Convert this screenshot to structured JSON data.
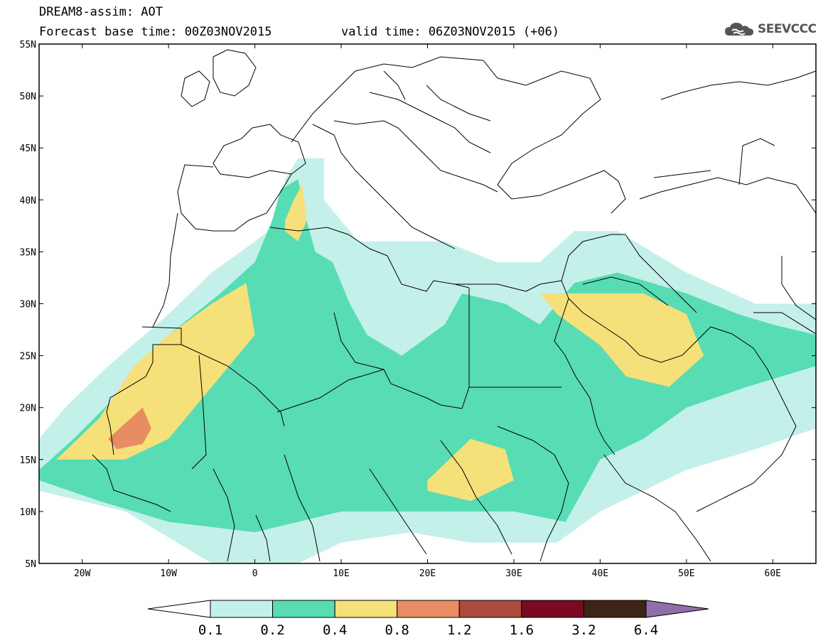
{
  "header": {
    "line1": "DREAM8-assim: AOT",
    "line2_left": "Forecast base time: 00Z03NOV2015",
    "line2_right": "valid time: 06Z03NOV2015 (+06)"
  },
  "logo": {
    "text": "SEEVCCC",
    "icon": "cloud-icon",
    "color": "#555555"
  },
  "map": {
    "projection": "lat-lon",
    "lon_range": [
      -25,
      65
    ],
    "lat_range": [
      5,
      55
    ],
    "lon_ticks": [
      {
        "value": -20,
        "label": "20W"
      },
      {
        "value": -10,
        "label": "10W"
      },
      {
        "value": 0,
        "label": "0"
      },
      {
        "value": 10,
        "label": "10E"
      },
      {
        "value": 20,
        "label": "20E"
      },
      {
        "value": 30,
        "label": "30E"
      },
      {
        "value": 40,
        "label": "40E"
      },
      {
        "value": 50,
        "label": "50E"
      },
      {
        "value": 60,
        "label": "60E"
      }
    ],
    "lat_ticks": [
      {
        "value": 55,
        "label": "55N"
      },
      {
        "value": 50,
        "label": "50N"
      },
      {
        "value": 45,
        "label": "45N"
      },
      {
        "value": 40,
        "label": "40N"
      },
      {
        "value": 35,
        "label": "35N"
      },
      {
        "value": 30,
        "label": "30N"
      },
      {
        "value": 25,
        "label": "25N"
      },
      {
        "value": 20,
        "label": "20N"
      },
      {
        "value": 15,
        "label": "15N"
      },
      {
        "value": 10,
        "label": "10N"
      },
      {
        "value": 5,
        "label": "5N"
      }
    ]
  },
  "colorbar": {
    "labels": [
      "0.1",
      "0.2",
      "0.4",
      "0.8",
      "1.2",
      "1.6",
      "3.2",
      "6.4"
    ],
    "under_color": "#ffffff",
    "over_color": "#8e6fa9",
    "bins": [
      "#c4f0ea",
      "#58dcb4",
      "#f5e07a",
      "#e88c64",
      "#a94c3c",
      "#7a0a24",
      "#3e2414"
    ]
  },
  "chart_data": {
    "type": "heatmap",
    "variable": "AOT",
    "x_range_deg_lon": [
      -25,
      65
    ],
    "y_range_deg_lat": [
      5,
      55
    ],
    "levels": [
      0.1,
      0.2,
      0.4,
      0.8,
      1.2,
      1.6,
      3.2,
      6.4
    ],
    "colors": [
      "#c4f0ea",
      "#58dcb4",
      "#f5e07a",
      "#e88c64",
      "#a94c3c",
      "#7a0a24",
      "#3e2414",
      "#8e6fa9"
    ],
    "regions": [
      {
        "level": 0.1,
        "polygon": [
          [
            -25,
            17
          ],
          [
            -22,
            20
          ],
          [
            -17,
            24
          ],
          [
            -10,
            29
          ],
          [
            -5,
            33
          ],
          [
            0,
            36
          ],
          [
            3,
            38
          ],
          [
            3.5,
            42
          ],
          [
            5,
            44
          ],
          [
            8,
            44
          ],
          [
            8,
            40
          ],
          [
            12,
            36
          ],
          [
            18,
            36
          ],
          [
            22,
            36
          ],
          [
            28,
            34
          ],
          [
            33,
            34
          ],
          [
            37,
            37
          ],
          [
            42,
            37
          ],
          [
            50,
            33
          ],
          [
            58,
            30
          ],
          [
            65,
            30
          ],
          [
            65,
            18
          ],
          [
            58,
            16
          ],
          [
            50,
            14
          ],
          [
            45,
            12
          ],
          [
            40,
            10
          ],
          [
            35,
            7
          ],
          [
            25,
            7
          ],
          [
            18,
            8
          ],
          [
            10,
            7
          ],
          [
            5,
            5
          ],
          [
            -5,
            5
          ],
          [
            -15,
            10
          ],
          [
            -25,
            12
          ]
        ]
      },
      {
        "level": 0.2,
        "polygon": [
          [
            -25,
            14
          ],
          [
            -21,
            17
          ],
          [
            -15,
            22
          ],
          [
            -10,
            27
          ],
          [
            -4,
            31
          ],
          [
            0,
            34
          ],
          [
            2,
            38
          ],
          [
            3,
            41
          ],
          [
            5,
            42
          ],
          [
            6,
            38
          ],
          [
            7,
            35
          ],
          [
            9,
            34
          ],
          [
            11,
            30
          ],
          [
            13,
            27
          ],
          [
            17,
            25
          ],
          [
            22,
            28
          ],
          [
            24,
            31
          ],
          [
            29,
            30
          ],
          [
            33,
            28
          ],
          [
            37,
            32
          ],
          [
            42,
            33
          ],
          [
            50,
            31
          ],
          [
            56,
            29
          ],
          [
            60,
            28
          ],
          [
            65,
            27
          ],
          [
            65,
            24
          ],
          [
            57,
            22
          ],
          [
            50,
            20
          ],
          [
            45,
            17
          ],
          [
            40,
            15
          ],
          [
            38,
            12
          ],
          [
            36,
            9
          ],
          [
            30,
            10
          ],
          [
            20,
            10
          ],
          [
            10,
            10
          ],
          [
            0,
            8
          ],
          [
            -10,
            9
          ],
          [
            -18,
            11
          ],
          [
            -25,
            13
          ]
        ]
      },
      {
        "level": 0.4,
        "polygon": [
          [
            -23,
            15
          ],
          [
            -18,
            19
          ],
          [
            -14,
            24
          ],
          [
            -10,
            27
          ],
          [
            -5,
            30
          ],
          [
            -1,
            32
          ],
          [
            0,
            27
          ],
          [
            -5,
            22
          ],
          [
            -10,
            17
          ],
          [
            -15,
            15
          ],
          [
            -20,
            15
          ]
        ]
      },
      {
        "level": 0.4,
        "polygon": [
          [
            3.5,
            38
          ],
          [
            4.5,
            40
          ],
          [
            5.5,
            41.5
          ],
          [
            6,
            38
          ],
          [
            5,
            36
          ],
          [
            3.5,
            37
          ]
        ]
      },
      {
        "level": 0.4,
        "polygon": [
          [
            20,
            13
          ],
          [
            25,
            17
          ],
          [
            29,
            16
          ],
          [
            30,
            13
          ],
          [
            25,
            11
          ],
          [
            20,
            12
          ]
        ]
      },
      {
        "level": 0.4,
        "polygon": [
          [
            33,
            31
          ],
          [
            38,
            31
          ],
          [
            45,
            31
          ],
          [
            50,
            29
          ],
          [
            52,
            25
          ],
          [
            48,
            22
          ],
          [
            43,
            23
          ],
          [
            40,
            26
          ],
          [
            35,
            29
          ]
        ]
      },
      {
        "level": 0.8,
        "polygon": [
          [
            -17,
            17
          ],
          [
            -15,
            18.5
          ],
          [
            -13,
            20
          ],
          [
            -12,
            18
          ],
          [
            -13,
            16.5
          ],
          [
            -16,
            16
          ]
        ]
      }
    ],
    "xlabel": "",
    "ylabel": ""
  }
}
